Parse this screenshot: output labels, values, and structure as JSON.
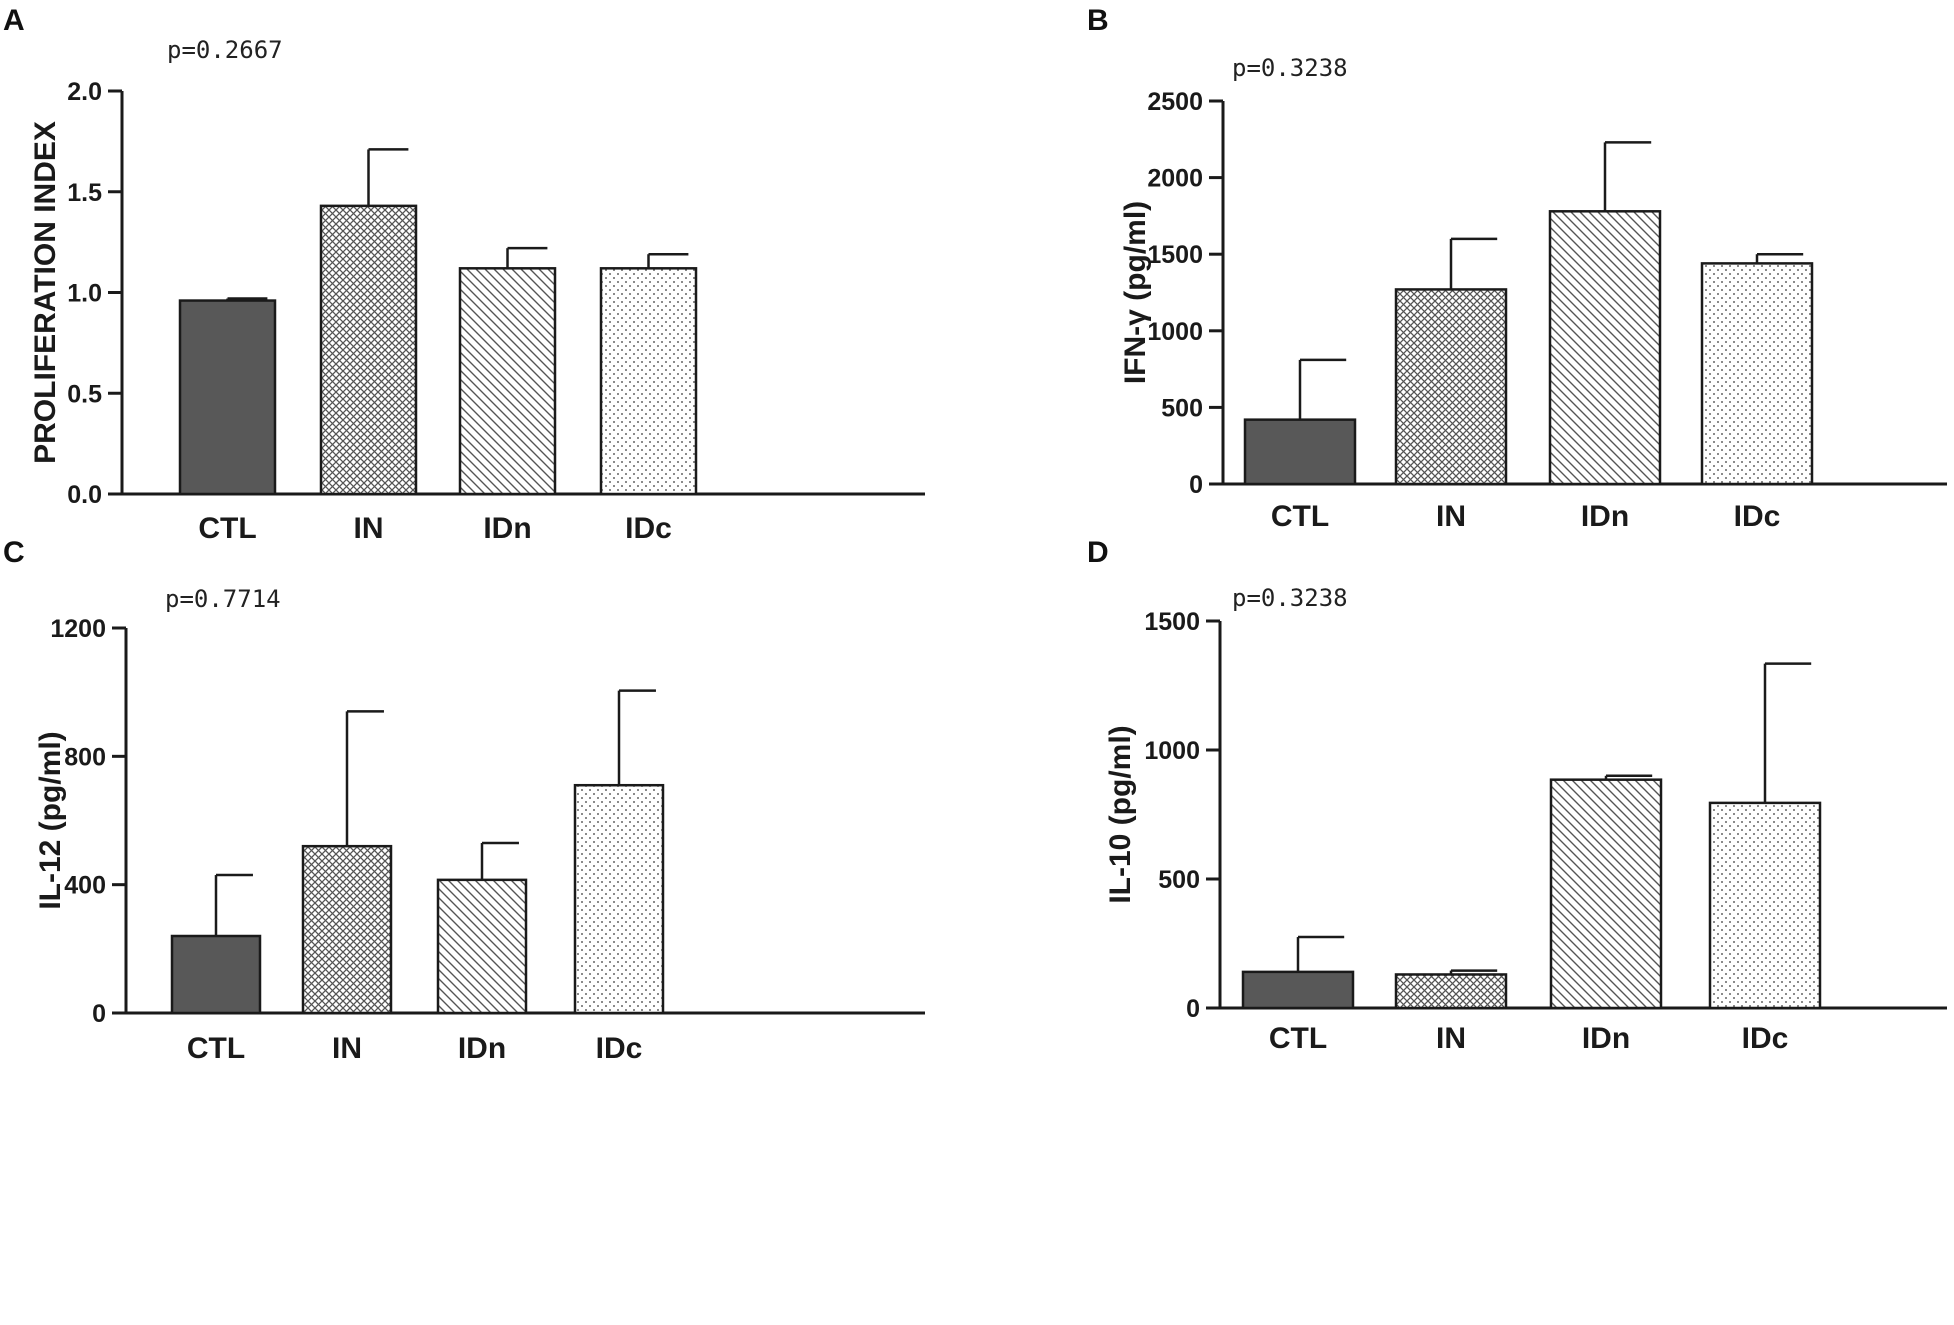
{
  "chart_data": [
    {
      "panel": "A",
      "type": "bar",
      "pvalue": "p=0.2667",
      "ylabel": "PROLIFERATION INDEX",
      "categories": [
        "CTL",
        "IN",
        "IDn",
        "IDc"
      ],
      "values": [
        0.96,
        1.43,
        1.12,
        1.12
      ],
      "errors": [
        0.01,
        0.28,
        0.1,
        0.07
      ],
      "ylim": [
        0,
        2.0
      ],
      "yticks": [
        0.0,
        0.5,
        1.0,
        1.5,
        2.0
      ],
      "ytick_labels": [
        "0.0",
        "0.5",
        "1.0",
        "1.5",
        "2.0"
      ]
    },
    {
      "panel": "B",
      "type": "bar",
      "pvalue": "p=0.3238",
      "ylabel": "IFN-γ (pg/ml)",
      "categories": [
        "CTL",
        "IN",
        "IDn",
        "IDc"
      ],
      "values": [
        420,
        1270,
        1780,
        1440
      ],
      "errors": [
        390,
        330,
        450,
        60
      ],
      "ylim": [
        0,
        2500
      ],
      "yticks": [
        0,
        500,
        1000,
        1500,
        2000,
        2500
      ],
      "ytick_labels": [
        "0",
        "500",
        "1000",
        "1500",
        "2000",
        "2500"
      ]
    },
    {
      "panel": "C",
      "type": "bar",
      "pvalue": "p=0.7714",
      "ylabel": "IL-12 (pg/ml)",
      "categories": [
        "CTL",
        "IN",
        "IDn",
        "IDc"
      ],
      "values": [
        240,
        520,
        415,
        710
      ],
      "errors": [
        190,
        420,
        115,
        295
      ],
      "ylim": [
        0,
        1200
      ],
      "yticks": [
        0,
        400,
        800,
        1200
      ],
      "ytick_labels": [
        "0",
        "400",
        "800",
        "1200"
      ]
    },
    {
      "panel": "D",
      "type": "bar",
      "pvalue": "p=0.3238",
      "ylabel": "IL-10 (pg/ml)",
      "categories": [
        "CTL",
        "IN",
        "IDn",
        "IDc"
      ],
      "values": [
        140,
        130,
        885,
        795
      ],
      "errors": [
        135,
        15,
        15,
        540
      ],
      "ylim": [
        0,
        1500
      ],
      "yticks": [
        0,
        500,
        1000,
        1500
      ],
      "ytick_labels": [
        "0",
        "500",
        "1000",
        "1500"
      ]
    }
  ],
  "bar_styles": {
    "CTL": {
      "fill": "#585858",
      "pattern": "solid"
    },
    "IN": {
      "fill": "#ffffff",
      "pattern": "crosshatch"
    },
    "IDn": {
      "fill": "#ffffff",
      "pattern": "diagonal"
    },
    "IDc": {
      "fill": "#ffffff",
      "pattern": "dots"
    }
  }
}
